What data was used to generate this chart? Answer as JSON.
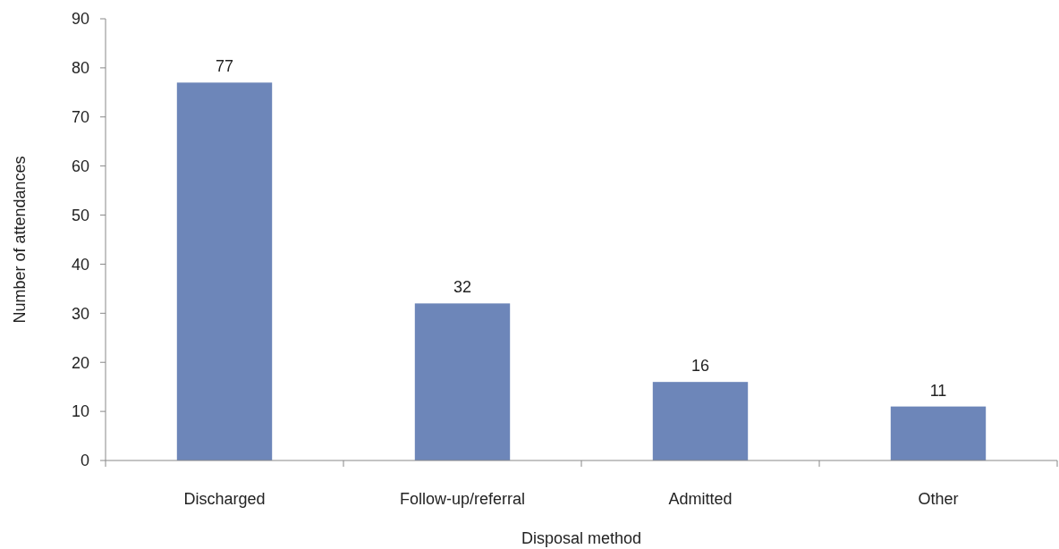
{
  "chart_data": {
    "type": "bar",
    "xlabel": "Disposal method",
    "ylabel": "Number of attendances",
    "categories": [
      "Discharged",
      "Follow-up/referral",
      "Admitted",
      "Other"
    ],
    "values": [
      77,
      32,
      16,
      11
    ],
    "color": "#6d86b9",
    "data_labels": true,
    "ylim": [
      0,
      90
    ],
    "yticks": [
      0,
      10,
      20,
      30,
      40,
      50,
      60,
      70,
      80,
      90
    ],
    "grid": false
  }
}
